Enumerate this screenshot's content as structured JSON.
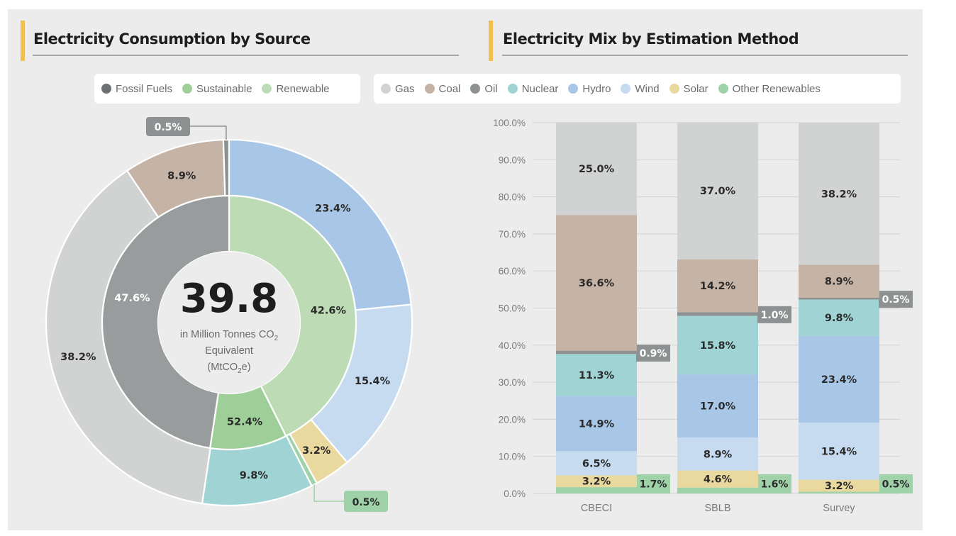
{
  "left_panel": {
    "title": "Electricity Consumption by Source",
    "legend": [
      {
        "label": "Fossil Fuels",
        "color": "#6d7073"
      },
      {
        "label": "Sustainable",
        "color": "#9fcf98"
      },
      {
        "label": "Renewable",
        "color": "#bddcb6"
      }
    ],
    "center_value": "39.8",
    "center_caption_line1": "in Million Tonnes CO",
    "center_caption_line1_sub": "2",
    "center_caption_line2": "Equivalent",
    "center_caption_line3_pre": "(MtCO",
    "center_caption_line3_sub": "2",
    "center_caption_line3_post": "e)"
  },
  "right_panel": {
    "title": "Electricity Mix by Estimation Method",
    "legend": [
      {
        "label": "Gas",
        "color": "#d1d3d2"
      },
      {
        "label": "Coal",
        "color": "#c5b3a6"
      },
      {
        "label": "Oil",
        "color": "#8e9192"
      },
      {
        "label": "Nuclear",
        "color": "#a0d4d4"
      },
      {
        "label": "Hydro",
        "color": "#a8c6e6"
      },
      {
        "label": "Wind",
        "color": "#c6daf0"
      },
      {
        "label": "Solar",
        "color": "#ead99e"
      },
      {
        "label": "Other Renewables",
        "color": "#9fd2a8"
      }
    ]
  },
  "chart_data": [
    {
      "type": "pie",
      "title": "Electricity Consumption by Source",
      "center_total": 39.8,
      "center_unit": "in Million Tonnes CO2 Equivalent (MtCO2e)",
      "outer_ring": [
        {
          "name": "Hydro",
          "value": 23.4,
          "label": "23.4%",
          "color": "#a8c6e6"
        },
        {
          "name": "Wind",
          "value": 15.4,
          "label": "15.4%",
          "color": "#c6daf0"
        },
        {
          "name": "Solar",
          "value": 3.2,
          "label": "3.2%",
          "color": "#ead99e"
        },
        {
          "name": "Other Renewables",
          "value": 0.5,
          "label": "0.5%",
          "color": "#9fd2a8",
          "callout": true
        },
        {
          "name": "Nuclear",
          "value": 9.8,
          "label": "9.8%",
          "color": "#a0d4d4"
        },
        {
          "name": "Gas",
          "value": 38.2,
          "label": "38.2%",
          "color": "#d1d3d2"
        },
        {
          "name": "Coal",
          "value": 8.9,
          "label": "8.9%",
          "color": "#c5b3a6"
        },
        {
          "name": "Oil",
          "value": 0.5,
          "label": "0.5%",
          "color": "#8e9192",
          "callout": true
        }
      ],
      "inner_ring": [
        {
          "name": "Renewable",
          "value": 42.6,
          "label": "42.6%",
          "color": "#bddcb6"
        },
        {
          "name": "Sustainable",
          "value": 9.8,
          "label": "52.4%",
          "color": "#9fcf98"
        },
        {
          "name": "Fossil Fuels",
          "value": 47.6,
          "label": "47.6%",
          "color": "#999c9d"
        }
      ]
    },
    {
      "type": "bar",
      "stacked": true,
      "title": "Electricity Mix by Estimation Method",
      "categories": [
        "CBECI",
        "SBLB",
        "Survey"
      ],
      "ylim": [
        0,
        100
      ],
      "yticks": [
        "0.0%",
        "10.0%",
        "20.0%",
        "30.0%",
        "40.0%",
        "50.0%",
        "60.0%",
        "70.0%",
        "80.0%",
        "90.0%",
        "100.0%"
      ],
      "grid": true,
      "legend_position": "top",
      "series": [
        {
          "name": "Other Renewables",
          "color": "#9fd2a8",
          "values": [
            1.7,
            1.6,
            0.5
          ],
          "labels": [
            "1.7%",
            "1.6%",
            "0.5%"
          ],
          "label_outside": true
        },
        {
          "name": "Solar",
          "color": "#ead99e",
          "values": [
            3.2,
            4.6,
            3.2
          ],
          "labels": [
            "3.2%",
            "4.6%",
            "3.2%"
          ]
        },
        {
          "name": "Wind",
          "color": "#c6daf0",
          "values": [
            6.5,
            8.9,
            15.4
          ],
          "labels": [
            "6.5%",
            "8.9%",
            "15.4%"
          ]
        },
        {
          "name": "Hydro",
          "color": "#a8c6e6",
          "values": [
            14.9,
            17.0,
            23.4
          ],
          "labels": [
            "14.9%",
            "17.0%",
            "23.4%"
          ]
        },
        {
          "name": "Nuclear",
          "color": "#a0d4d4",
          "values": [
            11.3,
            15.8,
            9.8
          ],
          "labels": [
            "11.3%",
            "15.8%",
            "9.8%"
          ]
        },
        {
          "name": "Oil",
          "color": "#8e9192",
          "values": [
            0.9,
            1.0,
            0.5
          ],
          "labels": [
            "0.9%",
            "1.0%",
            "0.5%"
          ],
          "label_outside": true
        },
        {
          "name": "Coal",
          "color": "#c5b3a6",
          "values": [
            36.6,
            14.2,
            8.9
          ],
          "labels": [
            "36.6%",
            "14.2%",
            "8.9%"
          ]
        },
        {
          "name": "Gas",
          "color": "#d1d3d2",
          "values": [
            25.0,
            37.0,
            38.2
          ],
          "labels": [
            "25.0%",
            "37.0%",
            "38.2%"
          ]
        }
      ]
    }
  ]
}
